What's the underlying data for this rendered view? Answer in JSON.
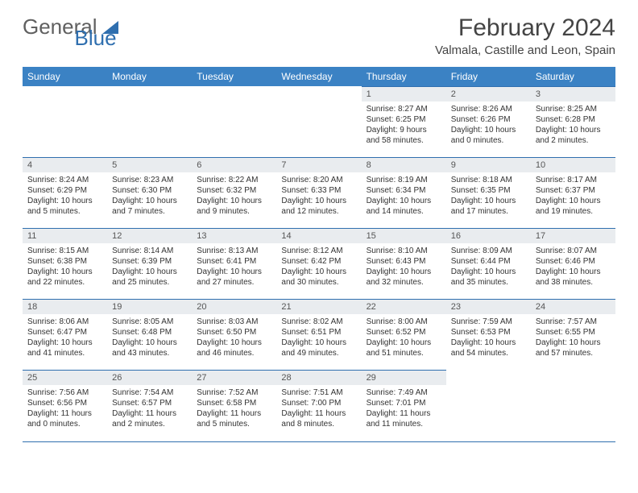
{
  "brand": {
    "part1": "General",
    "part2": "Blue"
  },
  "title": "February 2024",
  "location": "Valmala, Castille and Leon, Spain",
  "colors": {
    "header_bg": "#3b82c4",
    "header_text": "#ffffff",
    "daynum_bg": "#e9ecef",
    "row_divider": "#2f6faf",
    "logo_gray": "#606060",
    "logo_blue": "#2f6faf"
  },
  "weekdays": [
    "Sunday",
    "Monday",
    "Tuesday",
    "Wednesday",
    "Thursday",
    "Friday",
    "Saturday"
  ],
  "first_weekday_index": 4,
  "days": [
    {
      "n": 1,
      "sunrise": "8:27 AM",
      "sunset": "6:25 PM",
      "daylight": "9 hours and 58 minutes."
    },
    {
      "n": 2,
      "sunrise": "8:26 AM",
      "sunset": "6:26 PM",
      "daylight": "10 hours and 0 minutes."
    },
    {
      "n": 3,
      "sunrise": "8:25 AM",
      "sunset": "6:28 PM",
      "daylight": "10 hours and 2 minutes."
    },
    {
      "n": 4,
      "sunrise": "8:24 AM",
      "sunset": "6:29 PM",
      "daylight": "10 hours and 5 minutes."
    },
    {
      "n": 5,
      "sunrise": "8:23 AM",
      "sunset": "6:30 PM",
      "daylight": "10 hours and 7 minutes."
    },
    {
      "n": 6,
      "sunrise": "8:22 AM",
      "sunset": "6:32 PM",
      "daylight": "10 hours and 9 minutes."
    },
    {
      "n": 7,
      "sunrise": "8:20 AM",
      "sunset": "6:33 PM",
      "daylight": "10 hours and 12 minutes."
    },
    {
      "n": 8,
      "sunrise": "8:19 AM",
      "sunset": "6:34 PM",
      "daylight": "10 hours and 14 minutes."
    },
    {
      "n": 9,
      "sunrise": "8:18 AM",
      "sunset": "6:35 PM",
      "daylight": "10 hours and 17 minutes."
    },
    {
      "n": 10,
      "sunrise": "8:17 AM",
      "sunset": "6:37 PM",
      "daylight": "10 hours and 19 minutes."
    },
    {
      "n": 11,
      "sunrise": "8:15 AM",
      "sunset": "6:38 PM",
      "daylight": "10 hours and 22 minutes."
    },
    {
      "n": 12,
      "sunrise": "8:14 AM",
      "sunset": "6:39 PM",
      "daylight": "10 hours and 25 minutes."
    },
    {
      "n": 13,
      "sunrise": "8:13 AM",
      "sunset": "6:41 PM",
      "daylight": "10 hours and 27 minutes."
    },
    {
      "n": 14,
      "sunrise": "8:12 AM",
      "sunset": "6:42 PM",
      "daylight": "10 hours and 30 minutes."
    },
    {
      "n": 15,
      "sunrise": "8:10 AM",
      "sunset": "6:43 PM",
      "daylight": "10 hours and 32 minutes."
    },
    {
      "n": 16,
      "sunrise": "8:09 AM",
      "sunset": "6:44 PM",
      "daylight": "10 hours and 35 minutes."
    },
    {
      "n": 17,
      "sunrise": "8:07 AM",
      "sunset": "6:46 PM",
      "daylight": "10 hours and 38 minutes."
    },
    {
      "n": 18,
      "sunrise": "8:06 AM",
      "sunset": "6:47 PM",
      "daylight": "10 hours and 41 minutes."
    },
    {
      "n": 19,
      "sunrise": "8:05 AM",
      "sunset": "6:48 PM",
      "daylight": "10 hours and 43 minutes."
    },
    {
      "n": 20,
      "sunrise": "8:03 AM",
      "sunset": "6:50 PM",
      "daylight": "10 hours and 46 minutes."
    },
    {
      "n": 21,
      "sunrise": "8:02 AM",
      "sunset": "6:51 PM",
      "daylight": "10 hours and 49 minutes."
    },
    {
      "n": 22,
      "sunrise": "8:00 AM",
      "sunset": "6:52 PM",
      "daylight": "10 hours and 51 minutes."
    },
    {
      "n": 23,
      "sunrise": "7:59 AM",
      "sunset": "6:53 PM",
      "daylight": "10 hours and 54 minutes."
    },
    {
      "n": 24,
      "sunrise": "7:57 AM",
      "sunset": "6:55 PM",
      "daylight": "10 hours and 57 minutes."
    },
    {
      "n": 25,
      "sunrise": "7:56 AM",
      "sunset": "6:56 PM",
      "daylight": "11 hours and 0 minutes."
    },
    {
      "n": 26,
      "sunrise": "7:54 AM",
      "sunset": "6:57 PM",
      "daylight": "11 hours and 2 minutes."
    },
    {
      "n": 27,
      "sunrise": "7:52 AM",
      "sunset": "6:58 PM",
      "daylight": "11 hours and 5 minutes."
    },
    {
      "n": 28,
      "sunrise": "7:51 AM",
      "sunset": "7:00 PM",
      "daylight": "11 hours and 8 minutes."
    },
    {
      "n": 29,
      "sunrise": "7:49 AM",
      "sunset": "7:01 PM",
      "daylight": "11 hours and 11 minutes."
    }
  ],
  "labels": {
    "sunrise": "Sunrise:",
    "sunset": "Sunset:",
    "daylight": "Daylight:"
  }
}
